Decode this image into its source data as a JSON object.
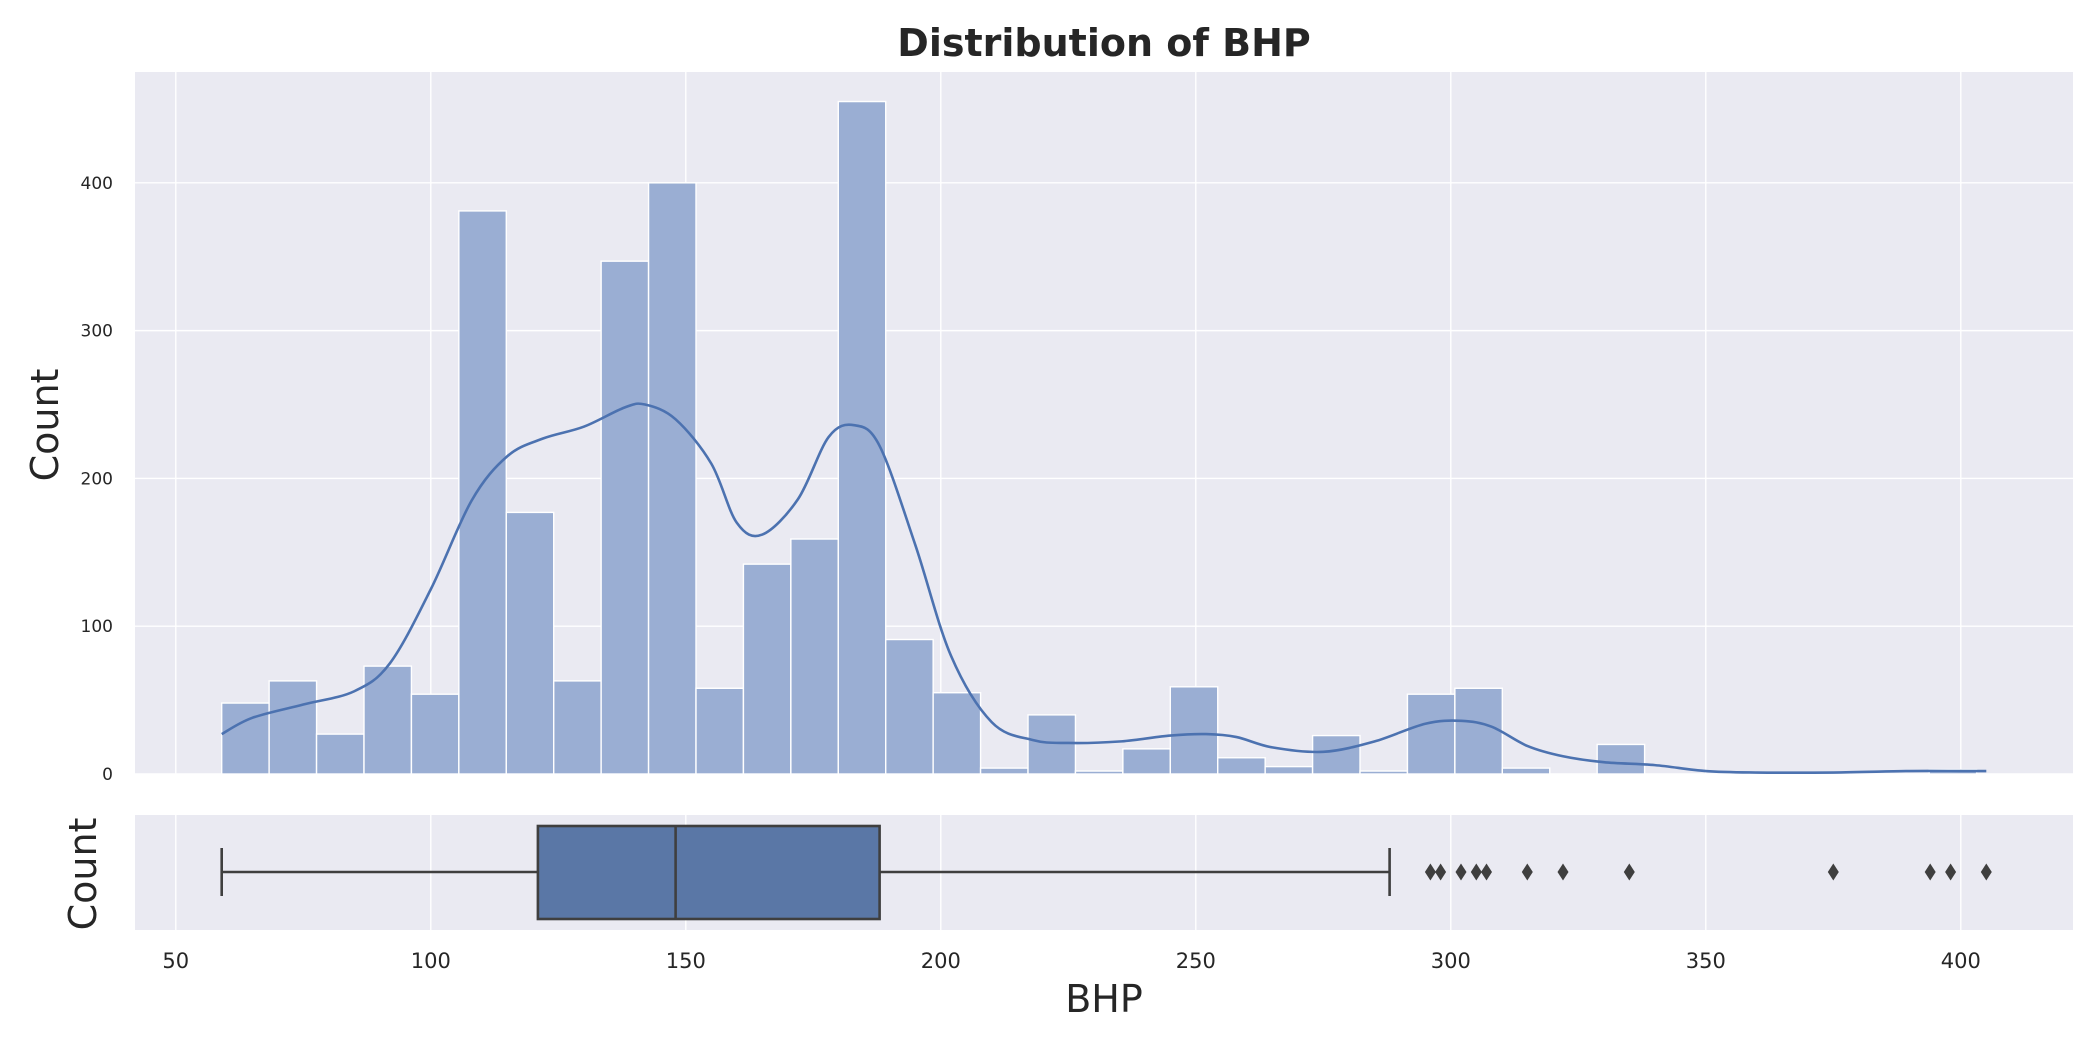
{
  "colors": {
    "axes_bg": "#eaeaf2",
    "grid": "#ffffff",
    "bar_fill": "#9aaed3",
    "kde_line": "#4c72b0",
    "box_fill": "#5a77a6",
    "box_line": "#3f3f3f",
    "text": "#262626"
  },
  "chart_data": [
    {
      "type": "bar",
      "subtype": "histogram-with-kde",
      "title": "Distribution of BHP",
      "xlabel": "",
      "ylabel": "Count",
      "xlim": [
        42,
        422
      ],
      "ylim": [
        0,
        475
      ],
      "x_ticks": [
        50,
        100,
        150,
        200,
        250,
        300,
        350,
        400
      ],
      "y_ticks": [
        0,
        100,
        200,
        300,
        400
      ],
      "grid": true,
      "bin_edges": [
        59.0,
        68.3,
        77.6,
        86.9,
        96.2,
        105.5,
        114.8,
        124.1,
        133.4,
        142.7,
        152.0,
        161.3,
        170.6,
        179.9,
        189.2,
        198.5,
        207.8,
        217.1,
        226.4,
        235.7,
        245.0,
        254.3,
        263.6,
        272.9,
        282.2,
        291.5,
        300.8,
        310.1,
        319.4,
        328.7,
        338.0,
        347.3,
        356.6,
        365.9,
        375.2,
        384.5,
        393.8,
        403.1
      ],
      "counts": [
        48,
        63,
        27,
        73,
        54,
        381,
        177,
        63,
        347,
        400,
        58,
        142,
        159,
        455,
        91,
        55,
        4,
        40,
        2,
        17,
        59,
        11,
        5,
        26,
        2,
        54,
        58,
        4,
        0,
        20,
        0,
        0,
        0,
        0,
        0,
        0,
        3
      ],
      "kde": {
        "x": [
          59,
          65,
          75,
          85,
          92,
          100,
          108,
          115,
          122,
          130,
          138,
          142,
          148,
          155,
          160,
          165,
          172,
          178,
          183,
          188,
          195,
          202,
          210,
          218,
          225,
          235,
          245,
          252,
          258,
          265,
          275,
          285,
          295,
          302,
          308,
          315,
          322,
          330,
          340,
          350,
          360,
          375,
          390,
          400,
          405
        ],
        "y": [
          27,
          38,
          47,
          56,
          75,
          125,
          185,
          215,
          227,
          235,
          248,
          250,
          240,
          210,
          170,
          162,
          186,
          228,
          236,
          222,
          155,
          80,
          35,
          23,
          21,
          22,
          26,
          27,
          25,
          18,
          15,
          22,
          34,
          36,
          32,
          19,
          12,
          8,
          6,
          2,
          1,
          1,
          2,
          2,
          2
        ]
      }
    },
    {
      "type": "box",
      "xlabel": "BHP",
      "ylabel": "Count",
      "xlim": [
        42,
        422
      ],
      "x_ticks": [
        50,
        100,
        150,
        200,
        250,
        300,
        350,
        400
      ],
      "whisker_low": 59,
      "q1": 121,
      "median": 148,
      "q3": 188,
      "whisker_high": 288,
      "outliers": [
        296,
        298,
        302,
        305,
        307,
        315,
        322,
        335,
        375,
        394,
        398,
        405
      ]
    }
  ]
}
